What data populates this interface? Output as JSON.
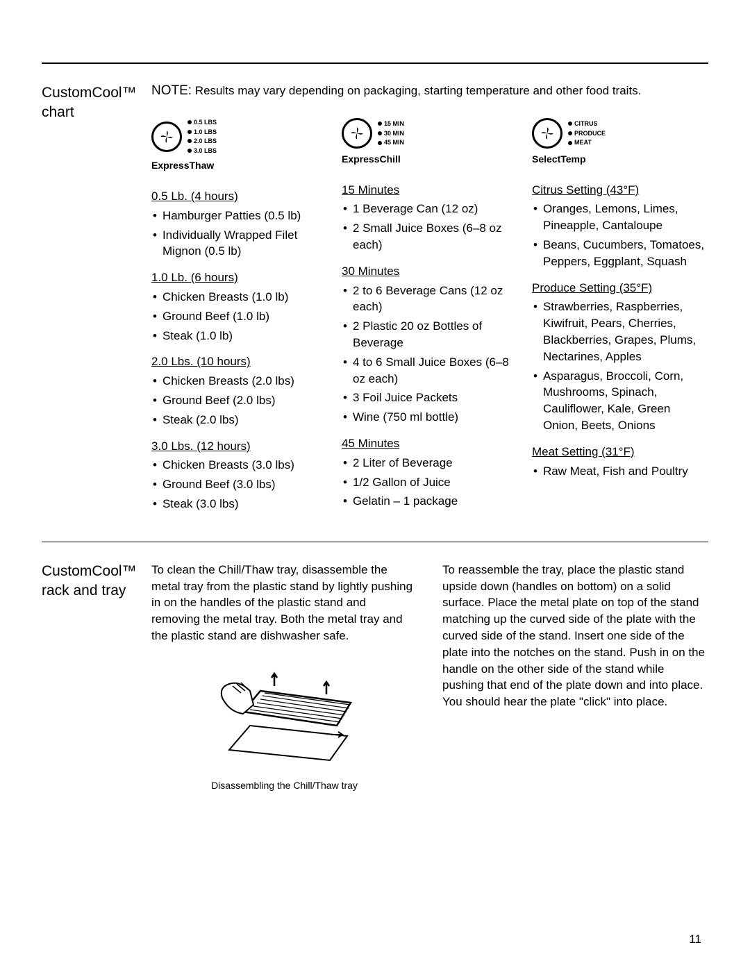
{
  "page_number": "11",
  "section1": {
    "title": "CustomCool™ chart",
    "note_lead": "NOTE:",
    "note_body": "Results may vary depending on packaging, starting temperature and other food traits.",
    "columns": [
      {
        "mode": "ExpressThaw",
        "options": [
          "0.5 LBS",
          "1.0 LBS",
          "2.0 LBS",
          "3.0 LBS"
        ],
        "groups": [
          {
            "heading": "0.5 Lb. (4 hours)",
            "items": [
              "Hamburger Patties (0.5 lb)",
              "Individually Wrapped Filet Mignon (0.5 lb)"
            ]
          },
          {
            "heading": "1.0 Lb. (6 hours)",
            "items": [
              "Chicken Breasts (1.0 lb)",
              "Ground Beef (1.0 lb)",
              "Steak (1.0 lb)"
            ]
          },
          {
            "heading": "2.0 Lbs. (10 hours)",
            "items": [
              "Chicken Breasts (2.0 lbs)",
              "Ground Beef (2.0 lbs)",
              "Steak (2.0 lbs)"
            ]
          },
          {
            "heading": "3.0 Lbs. (12 hours)",
            "items": [
              "Chicken Breasts (3.0 lbs)",
              "Ground Beef (3.0 lbs)",
              "Steak (3.0 lbs)"
            ]
          }
        ]
      },
      {
        "mode": "ExpressChill",
        "options": [
          "15 MIN",
          "30 MIN",
          "45 MIN"
        ],
        "groups": [
          {
            "heading": "15 Minutes",
            "items": [
              "1 Beverage Can (12 oz)",
              "2 Small Juice Boxes (6–8 oz each)"
            ]
          },
          {
            "heading": "30 Minutes",
            "items": [
              "2 to 6 Beverage Cans (12 oz each)",
              "2 Plastic 20 oz Bottles of Beverage",
              "4 to 6 Small Juice Boxes (6–8 oz each)",
              "3 Foil Juice Packets",
              "Wine (750 ml bottle)"
            ]
          },
          {
            "heading": "45 Minutes",
            "items": [
              "2 Liter of Beverage",
              "1/2 Gallon of Juice",
              "Gelatin – 1 package"
            ]
          }
        ]
      },
      {
        "mode": "SelectTemp",
        "options": [
          "CITRUS",
          "PRODUCE",
          "MEAT"
        ],
        "groups": [
          {
            "heading": "Citrus Setting (43°F)",
            "items": [
              "Oranges, Lemons, Limes, Pineapple, Cantaloupe",
              "Beans, Cucumbers, Tomatoes, Peppers, Eggplant, Squash"
            ]
          },
          {
            "heading": "Produce Setting (35°F)",
            "items": [
              "Strawberries, Raspberries, Kiwifruit, Pears, Cherries, Blackberries, Grapes, Plums, Nectarines, Apples",
              "Asparagus, Broccoli, Corn, Mushrooms, Spinach, Cauliflower, Kale, Green Onion, Beets, Onions"
            ]
          },
          {
            "heading": "Meat Setting (31°F)",
            "items": [
              "Raw Meat, Fish and Poultry"
            ]
          }
        ]
      }
    ]
  },
  "section2": {
    "title": "CustomCool™ rack and tray",
    "left_para": "To clean the Chill/Thaw tray, disassemble the metal tray from the plastic stand by lightly pushing in on the handles of the plastic stand and removing the metal tray. Both the metal tray and the plastic stand are dishwasher safe.",
    "right_para": "To reassemble the tray, place the plastic stand upside down (handles on bottom) on a solid surface. Place the metal plate on top of the stand matching up the curved side of the plate with the curved side of the stand. Insert one side of the plate into the notches on the stand. Push in on the handle on the other side of the stand while pushing that end of the plate down and into place. You should hear the plate \"click\" into place.",
    "illus_caption": "Disassembling the Chill/Thaw tray"
  }
}
